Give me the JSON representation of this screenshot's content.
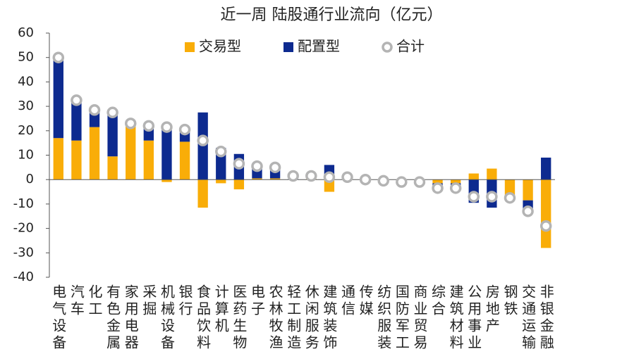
{
  "chart_data": {
    "type": "bar",
    "stacked": true,
    "title": "近一周 陆股通行业流向（亿元）",
    "categories": [
      "电气设备",
      "汽车",
      "化工",
      "有色金属",
      "家用电器",
      "采掘",
      "机械设备",
      "银行",
      "食品饮料",
      "计算机",
      "医药生物",
      "电子",
      "农林牧渔",
      "轻工制造",
      "休闲服务",
      "建筑装饰",
      "通信",
      "传媒",
      "纺织服装",
      "国防军工",
      "商业贸易",
      "综合",
      "建筑材料",
      "公用事业",
      "房地产",
      "钢铁",
      "交通运输",
      "非银金融"
    ],
    "series": [
      {
        "name": "交易型",
        "color": "#f9ad08",
        "values": [
          17,
          16,
          21.5,
          9.5,
          22.5,
          16,
          -1,
          15.5,
          -11.5,
          -1.5,
          -4,
          0.5,
          0.5,
          0,
          0.5,
          -5,
          0,
          1,
          0,
          -0.5,
          -0.5,
          -1.5,
          -1.5,
          2.5,
          4.5,
          -6.5,
          -8.5,
          -28
        ]
      },
      {
        "name": "配置型",
        "color": "#0d2a8f",
        "values": [
          33,
          16.5,
          7,
          18,
          0.5,
          6,
          22.5,
          5,
          27.5,
          13,
          10.5,
          5,
          4.5,
          1.5,
          1,
          6,
          1,
          -1,
          -0.5,
          -0.5,
          -0.5,
          -2,
          -2,
          -9.5,
          -11.5,
          -1,
          -4.5,
          9
        ]
      },
      {
        "name": "合计",
        "type": "scatter",
        "color": "#b4b4b4",
        "values": [
          50,
          32.5,
          28.5,
          27.5,
          23,
          22,
          21.5,
          20.5,
          16,
          11.5,
          6.5,
          5.5,
          5,
          1.5,
          1.5,
          1,
          1,
          0,
          -0.5,
          -1,
          -1,
          -3.5,
          -3.5,
          -7,
          -7,
          -7.5,
          -13,
          -19
        ]
      }
    ],
    "ylim": [
      -40,
      60
    ],
    "yticks": [
      -40,
      -30,
      -20,
      -10,
      0,
      10,
      20,
      30,
      40,
      50,
      60
    ],
    "grid": false,
    "legend": "top"
  }
}
